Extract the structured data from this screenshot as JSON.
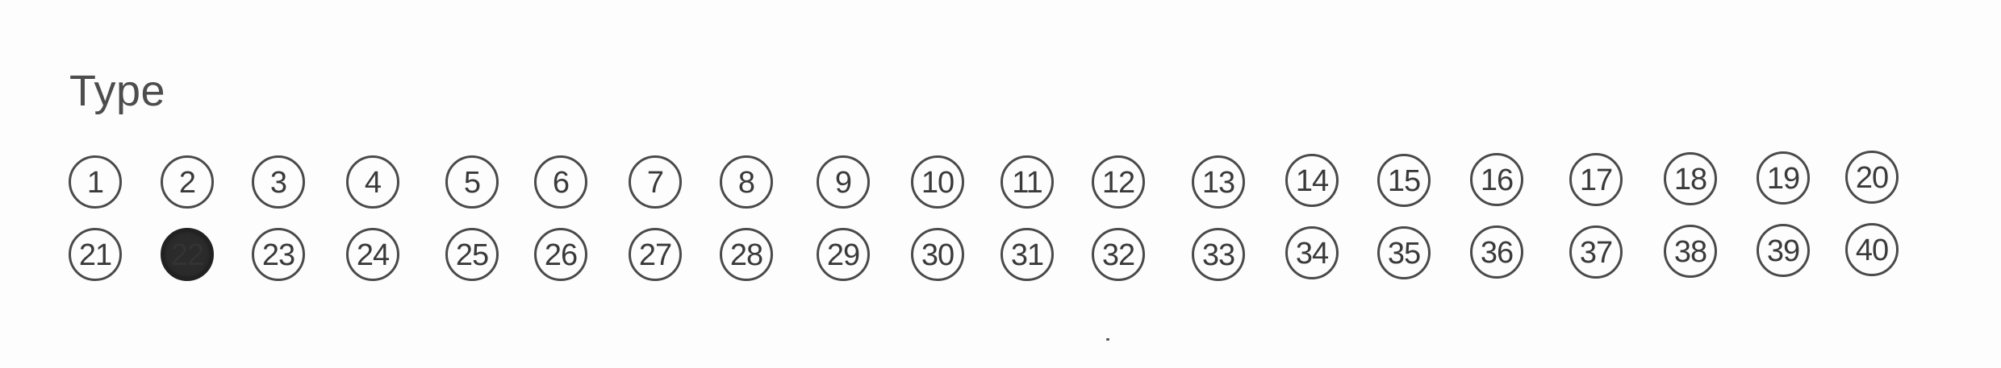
{
  "section": {
    "title": "Type"
  },
  "rows": [
    {
      "options": [
        {
          "label": "1",
          "filled": false
        },
        {
          "label": "2",
          "filled": false
        },
        {
          "label": "3",
          "filled": false
        },
        {
          "label": "4",
          "filled": false
        },
        {
          "label": "5",
          "filled": false
        },
        {
          "label": "6",
          "filled": false
        },
        {
          "label": "7",
          "filled": false
        },
        {
          "label": "8",
          "filled": false
        },
        {
          "label": "9",
          "filled": false
        },
        {
          "label": "10",
          "filled": false
        },
        {
          "label": "11",
          "filled": false
        },
        {
          "label": "12",
          "filled": false
        },
        {
          "label": "13",
          "filled": false
        },
        {
          "label": "14",
          "filled": false
        },
        {
          "label": "15",
          "filled": false
        },
        {
          "label": "16",
          "filled": false
        },
        {
          "label": "17",
          "filled": false
        },
        {
          "label": "18",
          "filled": false
        },
        {
          "label": "19",
          "filled": false
        },
        {
          "label": "20",
          "filled": false
        }
      ]
    },
    {
      "options": [
        {
          "label": "21",
          "filled": false
        },
        {
          "label": "22",
          "filled": true
        },
        {
          "label": "23",
          "filled": false
        },
        {
          "label": "24",
          "filled": false
        },
        {
          "label": "25",
          "filled": false
        },
        {
          "label": "26",
          "filled": false
        },
        {
          "label": "27",
          "filled": false
        },
        {
          "label": "28",
          "filled": false
        },
        {
          "label": "29",
          "filled": false
        },
        {
          "label": "30",
          "filled": false
        },
        {
          "label": "31",
          "filled": false
        },
        {
          "label": "32",
          "filled": false
        },
        {
          "label": "33",
          "filled": false
        },
        {
          "label": "34",
          "filled": false
        },
        {
          "label": "35",
          "filled": false
        },
        {
          "label": "36",
          "filled": false
        },
        {
          "label": "37",
          "filled": false
        },
        {
          "label": "38",
          "filled": false
        },
        {
          "label": "39",
          "filled": false
        },
        {
          "label": "40",
          "filled": false
        }
      ]
    }
  ],
  "selected_value": "22",
  "colors": {
    "ink": "#4a4a4a",
    "fill": "#2b2b2b",
    "paper": "#fdfdfd"
  }
}
